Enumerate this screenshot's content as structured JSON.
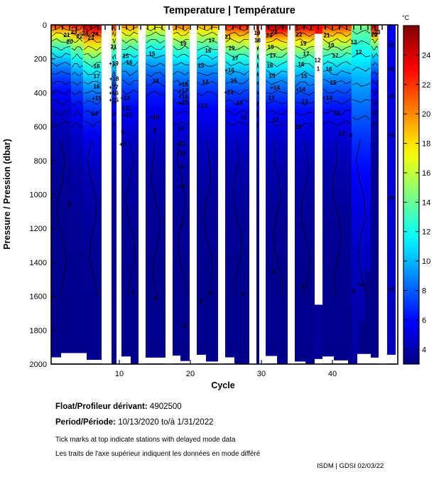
{
  "title": "Temperature | Température",
  "axes": {
    "xlabel": "Cycle",
    "ylabel": "Pressure / Pression (dbar)",
    "x_ticks": [
      10,
      20,
      30,
      40
    ],
    "y_ticks": [
      0,
      200,
      400,
      600,
      800,
      1000,
      1200,
      1400,
      1600,
      1800,
      2000
    ],
    "x_range": [
      0.4,
      49.2
    ],
    "y_range": [
      0,
      2000
    ]
  },
  "colorbar": {
    "unit": "°C",
    "ticks": [
      4,
      6,
      8,
      10,
      12,
      14,
      16,
      18,
      20,
      22,
      24
    ],
    "vmin": 3,
    "vmax": 26
  },
  "chart_data": {
    "type": "heatmap",
    "description": "Filled temperature contour section: temperature (°C, jet colormap) vs pressure (0-2000 dbar) per float cycle; white vertical bands are missing cycles; profiles modeled as T(d)=3.3+(t0-3.3)*exp(-d/s)",
    "deep_temp": 3.3,
    "columns": [
      {
        "c0": 0.4,
        "c1": 3.2,
        "t0": 22.0,
        "s": 200
      },
      {
        "c0": 3.2,
        "c1": 4.9,
        "t0": 23.0,
        "s": 240
      },
      {
        "c0": 4.9,
        "c1": 7.5,
        "t0": 25.0,
        "s": 280
      },
      {
        "c0": 8.9,
        "c1": 9.6,
        "t0": 22.0,
        "s": 250
      },
      {
        "c0": 10.3,
        "c1": 12.7,
        "t0": 20.0,
        "s": 260
      },
      {
        "c0": 13.7,
        "c1": 16.5,
        "t0": 18.0,
        "s": 260
      },
      {
        "c0": 17.5,
        "c1": 19.9,
        "t0": 20.5,
        "s": 260
      },
      {
        "c0": 20.9,
        "c1": 23.9,
        "t0": 19.5,
        "s": 260
      },
      {
        "c0": 24.9,
        "c1": 28.3,
        "t0": 23.0,
        "s": 250
      },
      {
        "c0": 29.3,
        "c1": 29.7,
        "t0": 24.0,
        "s": 250
      },
      {
        "c0": 30.6,
        "c1": 33.7,
        "t0": 25.5,
        "s": 240
      },
      {
        "c0": 34.7,
        "c1": 37.5,
        "t0": 24.5,
        "s": 250
      },
      {
        "c0": 38.6,
        "c1": 42.7,
        "t0": 22.5,
        "s": 260
      },
      {
        "c0": 42.7,
        "c1": 45.4,
        "t0": 14.5,
        "s": 600
      },
      {
        "c0": 45.4,
        "c1": 46.5,
        "t0": 25.5,
        "s": 170
      },
      {
        "c0": 47.7,
        "c1": 48.9,
        "t0": 5.5,
        "s": 3000
      }
    ],
    "missing_cycle_gaps": [
      [
        7.5,
        8.9
      ],
      [
        9.6,
        10.3
      ],
      [
        12.7,
        13.7
      ],
      [
        16.5,
        17.5
      ],
      [
        19.9,
        20.9
      ],
      [
        23.9,
        24.9
      ],
      [
        28.3,
        29.3
      ],
      [
        29.7,
        30.6
      ],
      [
        33.7,
        34.7
      ],
      [
        37.5,
        38.6
      ],
      [
        46.5,
        47.7
      ]
    ],
    "patches": [
      {
        "c0": 37.5,
        "c1": 38.6,
        "d0": 0,
        "d1": 52,
        "t": 23.0
      },
      {
        "c0": 37.5,
        "c1": 38.6,
        "d0": 1650,
        "d1": 1970,
        "t": 3.5
      },
      {
        "c0": 43.8,
        "c1": 45.4,
        "d0": 1750,
        "d1": 1945,
        "t": 3.15
      },
      {
        "c0": 44.6,
        "c1": 45.4,
        "d0": 1450,
        "d1": 1750,
        "t": 3.2
      }
    ],
    "bottom_data_limit": [
      {
        "c0": 0.4,
        "c1": 1.8,
        "d": 1960
      },
      {
        "c0": 1.8,
        "c1": 5.4,
        "d": 1935
      },
      {
        "c0": 5.4,
        "c1": 7.5,
        "d": 1975
      },
      {
        "c0": 10.3,
        "c1": 11.6,
        "d": 1955
      },
      {
        "c0": 13.7,
        "c1": 16.5,
        "d": 1962
      },
      {
        "c0": 17.5,
        "c1": 18.6,
        "d": 1950
      },
      {
        "c0": 18.6,
        "c1": 19.9,
        "d": 1982
      },
      {
        "c0": 20.9,
        "c1": 22.2,
        "d": 1945
      },
      {
        "c0": 22.2,
        "c1": 23.9,
        "d": 1985
      },
      {
        "c0": 24.9,
        "c1": 26.2,
        "d": 1960
      },
      {
        "c0": 30.6,
        "c1": 32.2,
        "d": 1952
      },
      {
        "c0": 34.7,
        "c1": 36.2,
        "d": 1985
      },
      {
        "c0": 38.6,
        "c1": 40.2,
        "d": 1955
      },
      {
        "c0": 40.2,
        "c1": 42.2,
        "d": 1978
      },
      {
        "c0": 43.5,
        "c1": 45.4,
        "d": 1940
      },
      {
        "c0": 45.4,
        "c1": 46.5,
        "d": 1962
      },
      {
        "c0": 47.7,
        "c1": 48.9,
        "d": 1945
      }
    ],
    "delayed_mode_ticks": {
      "start": 1,
      "end": 48
    },
    "contour_labels": [
      [
        2.6,
        60,
        "21"
      ],
      [
        3.6,
        45,
        "23"
      ],
      [
        4.4,
        70,
        "22"
      ],
      [
        5.2,
        50,
        "24"
      ],
      [
        6.0,
        78,
        "23"
      ],
      [
        6.6,
        55,
        "24"
      ],
      [
        3.0,
        100,
        "20"
      ],
      [
        6.8,
        245,
        "18"
      ],
      [
        6.8,
        305,
        "17"
      ],
      [
        6.8,
        365,
        "16"
      ],
      [
        6.8,
        435,
        "+15"
      ],
      [
        6.5,
        525,
        "14"
      ],
      [
        3.0,
        1060,
        "6"
      ],
      [
        9.2,
        130,
        "21"
      ],
      [
        9.2,
        228,
        "+19"
      ],
      [
        9.25,
        318,
        "+18"
      ],
      [
        9.2,
        370,
        "+17"
      ],
      [
        9.2,
        402,
        "+16"
      ],
      [
        9.2,
        445,
        "+15"
      ],
      [
        10.9,
        185,
        "15"
      ],
      [
        11.4,
        222,
        "16"
      ],
      [
        10.8,
        432,
        "+13"
      ],
      [
        11.0,
        492,
        "+11"
      ],
      [
        11.1,
        532,
        "+10"
      ],
      [
        10.45,
        635,
        "9"
      ],
      [
        10.45,
        705,
        "+8"
      ],
      [
        11.9,
        1580,
        "4"
      ],
      [
        14.6,
        172,
        "15"
      ],
      [
        15.1,
        332,
        "13"
      ],
      [
        14.9,
        545,
        "+10"
      ],
      [
        15.0,
        625,
        "9"
      ],
      [
        15.1,
        1612,
        "4"
      ],
      [
        19.0,
        112,
        "19"
      ],
      [
        19.0,
        352,
        "+18"
      ],
      [
        19.0,
        390,
        "+17"
      ],
      [
        19.0,
        424,
        "+16"
      ],
      [
        19.0,
        460,
        "+15"
      ],
      [
        18.7,
        612,
        "13"
      ],
      [
        18.7,
        702,
        "+11"
      ],
      [
        18.7,
        758,
        "+10"
      ],
      [
        18.8,
        838,
        "9"
      ],
      [
        18.8,
        952,
        "+8"
      ],
      [
        18.8,
        1185,
        "7"
      ],
      [
        19.2,
        1775,
        "4"
      ],
      [
        23.0,
        92,
        "17"
      ],
      [
        22.5,
        152,
        "16"
      ],
      [
        21.5,
        242,
        "15"
      ],
      [
        22.1,
        338,
        "14"
      ],
      [
        21.7,
        478,
        "+13"
      ],
      [
        21.5,
        1628,
        "4"
      ],
      [
        22.9,
        1582,
        "4"
      ],
      [
        25.3,
        72,
        "21"
      ],
      [
        25.8,
        138,
        "19"
      ],
      [
        26.3,
        198,
        "17"
      ],
      [
        25.5,
        268,
        "+16"
      ],
      [
        26.1,
        332,
        "15"
      ],
      [
        25.4,
        398,
        "+14"
      ],
      [
        26.9,
        462,
        "13"
      ],
      [
        27.5,
        545,
        "12"
      ],
      [
        27.4,
        1588,
        "4"
      ],
      [
        29.4,
        48,
        "19"
      ],
      [
        29.45,
        92,
        "18"
      ],
      [
        31.1,
        62,
        "23"
      ],
      [
        31.8,
        45,
        "24"
      ],
      [
        31.3,
        132,
        "19"
      ],
      [
        31.6,
        182,
        "17"
      ],
      [
        31.2,
        242,
        "16"
      ],
      [
        31.5,
        302,
        "15"
      ],
      [
        31.9,
        372,
        "+14"
      ],
      [
        31.4,
        432,
        "13"
      ],
      [
        32.0,
        562,
        "12"
      ],
      [
        31.7,
        1458,
        "4"
      ],
      [
        35.3,
        58,
        "22"
      ],
      [
        35.9,
        112,
        "19"
      ],
      [
        36.3,
        172,
        "17"
      ],
      [
        35.6,
        232,
        "16"
      ],
      [
        36.0,
        302,
        "15"
      ],
      [
        35.5,
        382,
        "+14"
      ],
      [
        36.1,
        452,
        "13"
      ],
      [
        35.2,
        602,
        "12"
      ],
      [
        35.8,
        1545,
        "4"
      ],
      [
        37.9,
        210,
        "12"
      ],
      [
        38.0,
        260,
        "1"
      ],
      [
        39.2,
        62,
        "21"
      ],
      [
        39.8,
        122,
        "19"
      ],
      [
        40.4,
        182,
        "17"
      ],
      [
        39.5,
        262,
        "16"
      ],
      [
        40.1,
        342,
        "15"
      ],
      [
        39.3,
        432,
        "+14"
      ],
      [
        40.6,
        522,
        "13"
      ],
      [
        41.3,
        642,
        "12"
      ],
      [
        43.0,
        102,
        "13"
      ],
      [
        43.7,
        162,
        "12"
      ],
      [
        42.6,
        652,
        "8"
      ],
      [
        43.0,
        1572,
        "5"
      ],
      [
        44.0,
        1532,
        "+4"
      ],
      [
        45.9,
        58,
        "22"
      ],
      [
        46.3,
        45,
        "23"
      ],
      [
        48.2,
        122,
        "+5"
      ],
      [
        48.2,
        262,
        "+5"
      ],
      [
        48.2,
        422,
        "+5"
      ],
      [
        48.3,
        652,
        "+5"
      ],
      [
        48.2,
        1022,
        "+5"
      ],
      [
        48.2,
        1560,
        "+4"
      ]
    ]
  },
  "footer": {
    "float_label": "Float/Profileur dérivant:",
    "float_value": "4902500",
    "period_label": "Period/Période:",
    "period_value": "10/13/2020  to/à  1/31/2022",
    "note_en": "Tick marks at top indicate stations with delayed mode data",
    "note_fr": "Les traits de l'axe supérieur indiquent les données en mode différé",
    "credit": "ISDM | GDSI  02/03/22"
  }
}
